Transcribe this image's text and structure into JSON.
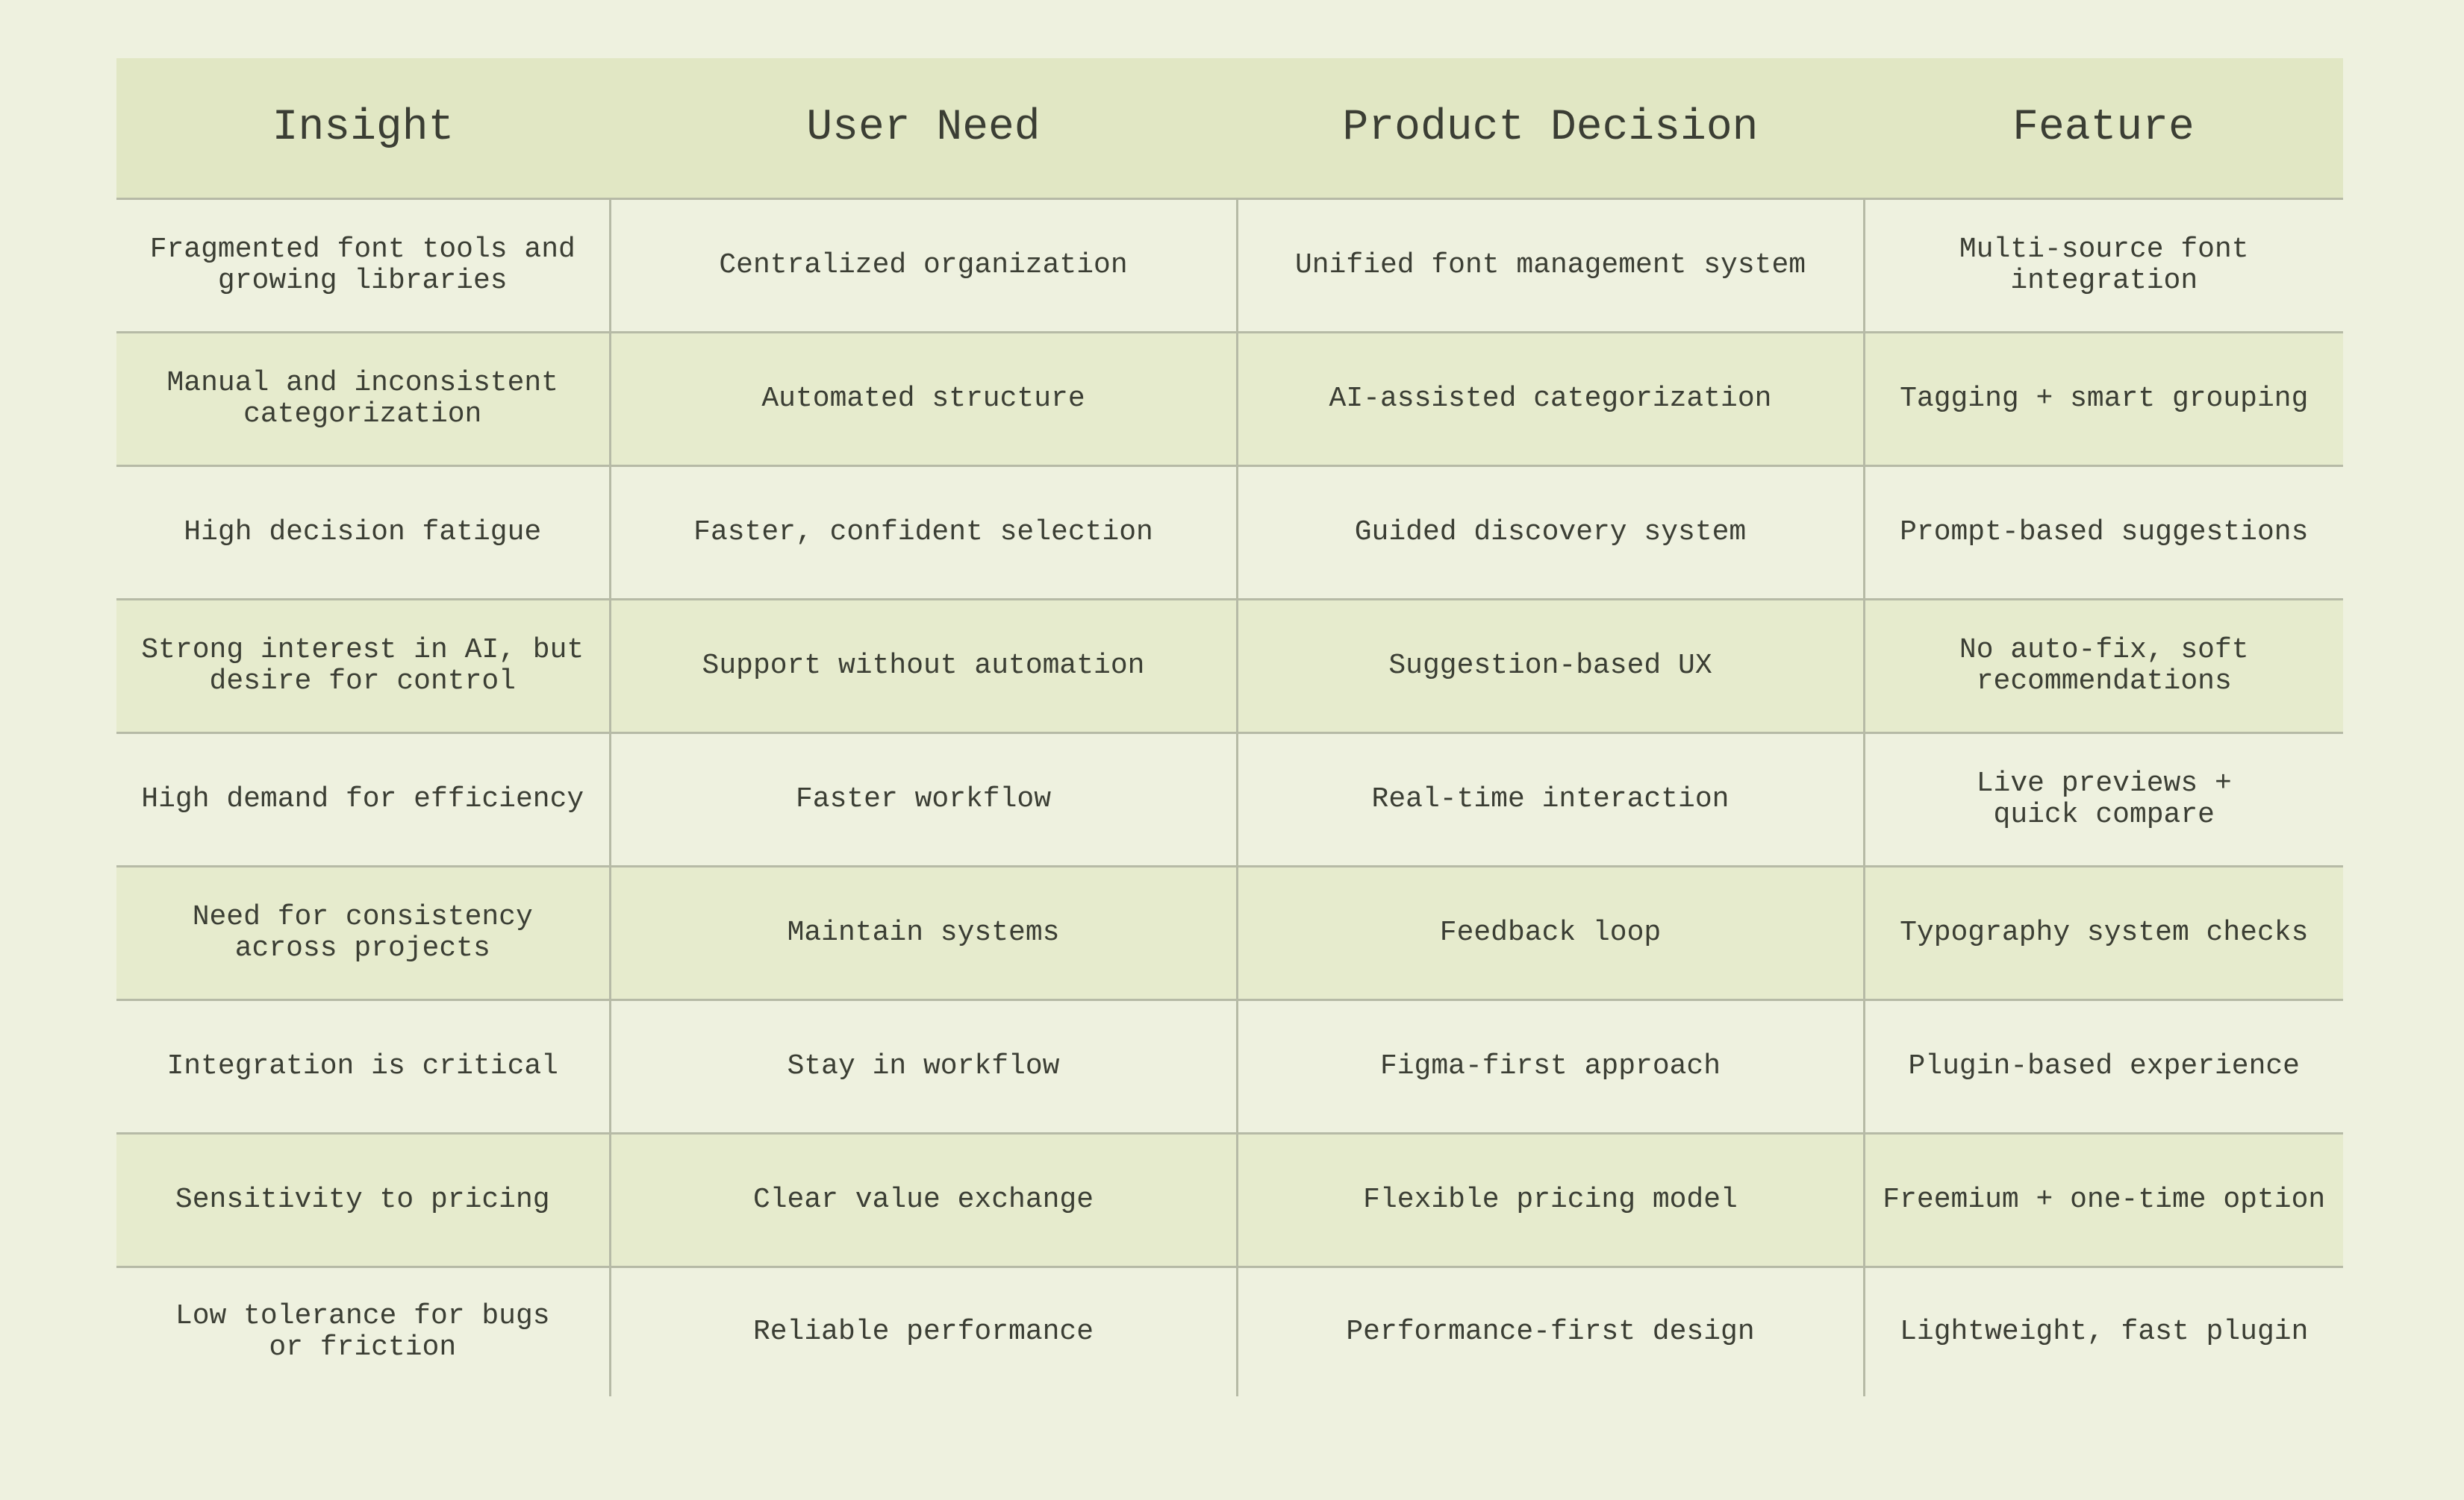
{
  "table": {
    "header": [
      "Insight",
      "User Need",
      "Product Decision",
      "Feature"
    ],
    "rows": [
      [
        "Fragmented font tools and\ngrowing libraries",
        "Centralized organization",
        "Unified font management system",
        "Multi-source font\nintegration"
      ],
      [
        "Manual and inconsistent\ncategorization",
        "Automated structure",
        "AI-assisted categorization",
        "Tagging + smart grouping"
      ],
      [
        "High decision fatigue",
        "Faster, confident selection",
        "Guided discovery system",
        "Prompt-based suggestions"
      ],
      [
        "Strong interest in AI, but\ndesire for control",
        "Support without automation",
        "Suggestion-based UX",
        "No auto-fix, soft\nrecommendations"
      ],
      [
        "High demand for efficiency",
        "Faster workflow",
        "Real-time interaction",
        "Live previews +\nquick compare"
      ],
      [
        "Need for consistency\nacross projects",
        "Maintain systems",
        "Feedback loop",
        "Typography system checks"
      ],
      [
        "Integration is critical",
        "Stay in workflow",
        "Figma-first approach",
        "Plugin-based experience"
      ],
      [
        "Sensitivity to pricing",
        "Clear value exchange",
        "Flexible pricing model",
        "Freemium + one-time option"
      ],
      [
        "Low tolerance for bugs\nor friction",
        "Reliable performance",
        "Performance-first design",
        "Lightweight, fast plugin"
      ]
    ]
  }
}
